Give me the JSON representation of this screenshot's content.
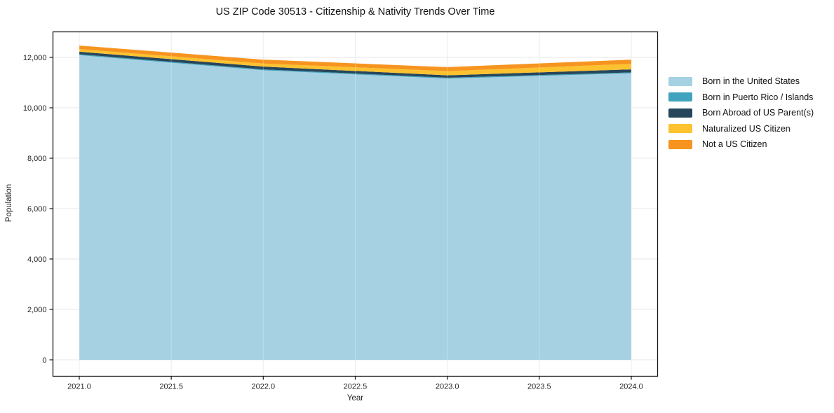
{
  "title": "US ZIP Code 30513 - Citizenship & Nativity Trends Over Time",
  "chart_data": {
    "type": "area",
    "stacked": true,
    "title": "US ZIP Code 30513 - Citizenship & Nativity Trends Over Time",
    "xlabel": "Year",
    "ylabel": "Population",
    "x": [
      2021,
      2022,
      2023,
      2024
    ],
    "xlim": [
      2020.855,
      2024.145
    ],
    "ylim": [
      -680,
      13030
    ],
    "grid": true,
    "legend_position": "right-outside",
    "x_ticks": [
      {
        "v": 2021.0,
        "label": "2021.0"
      },
      {
        "v": 2021.5,
        "label": "2021.5"
      },
      {
        "v": 2022.0,
        "label": "2022.0"
      },
      {
        "v": 2022.5,
        "label": "2022.5"
      },
      {
        "v": 2023.0,
        "label": "2023.0"
      },
      {
        "v": 2023.5,
        "label": "2023.5"
      },
      {
        "v": 2024.0,
        "label": "2024.0"
      }
    ],
    "y_ticks": [
      {
        "v": 0,
        "label": "0"
      },
      {
        "v": 2000,
        "label": "2,000"
      },
      {
        "v": 4000,
        "label": "4,000"
      },
      {
        "v": 6000,
        "label": "6,000"
      },
      {
        "v": 8000,
        "label": "8,000"
      },
      {
        "v": 10000,
        "label": "10,000"
      },
      {
        "v": 12000,
        "label": "12,000"
      }
    ],
    "series": [
      {
        "name": "Born in the United States",
        "color": "#a6d1e2",
        "values": [
          12090,
          11490,
          11160,
          11370
        ]
      },
      {
        "name": "Born in Puerto Rico / Islands",
        "color": "#41a3bd",
        "values": [
          35,
          35,
          35,
          35
        ]
      },
      {
        "name": "Born Abroad of US Parent(s)",
        "color": "#27465c",
        "values": [
          100,
          110,
          95,
          120
        ]
      },
      {
        "name": "Naturalized US Citizen",
        "color": "#fcc22f",
        "values": [
          105,
          120,
          165,
          220
        ]
      },
      {
        "name": "Not a US Citizen",
        "color": "#f7941f",
        "values": [
          140,
          155,
          160,
          165
        ]
      }
    ],
    "colors": {
      "grid": "#e7e7e7",
      "axis": "#1a1a1a",
      "plot_background": "#ffffff"
    }
  }
}
